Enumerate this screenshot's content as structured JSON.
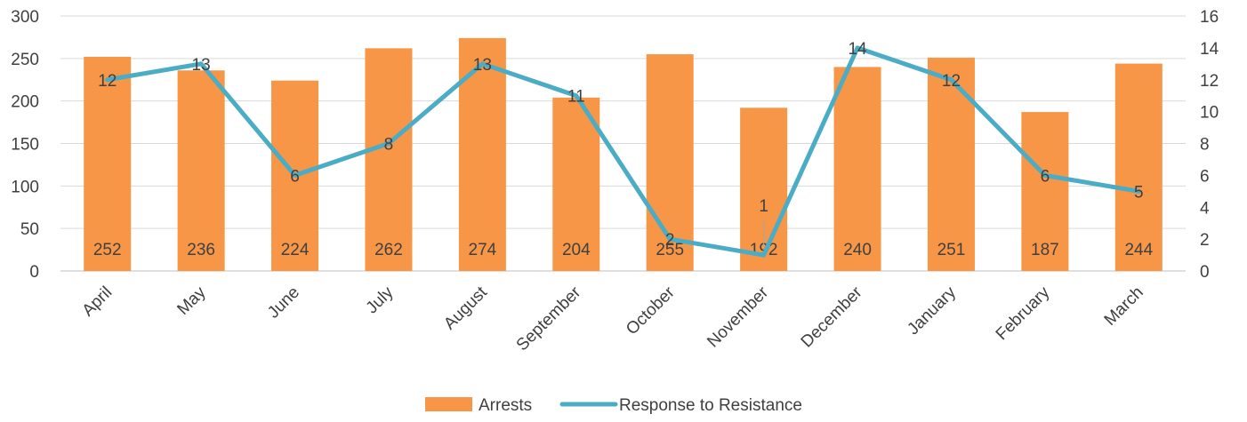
{
  "chart_data": {
    "type": "bar",
    "categories": [
      "April",
      "May",
      "June",
      "July",
      "August",
      "September",
      "October",
      "November",
      "December",
      "January",
      "February",
      "March"
    ],
    "series": [
      {
        "name": "Arrests",
        "kind": "bar",
        "axis": "left",
        "color": "#F79646",
        "values": [
          252,
          236,
          224,
          262,
          274,
          204,
          255,
          192,
          240,
          251,
          187,
          244
        ]
      },
      {
        "name": "Response to Resistance",
        "kind": "line",
        "axis": "right",
        "color": "#4BACC6",
        "values": [
          12,
          13,
          6,
          8,
          13,
          11,
          2,
          1,
          14,
          12,
          6,
          5
        ]
      }
    ],
    "y_left": {
      "lim": [
        0,
        300
      ],
      "ticks": [
        0,
        50,
        100,
        150,
        200,
        250,
        300
      ]
    },
    "y_right": {
      "lim": [
        0,
        16
      ],
      "ticks": [
        0,
        2,
        4,
        6,
        8,
        10,
        12,
        14,
        16
      ]
    },
    "grid": true,
    "legend": "bottom-center"
  }
}
